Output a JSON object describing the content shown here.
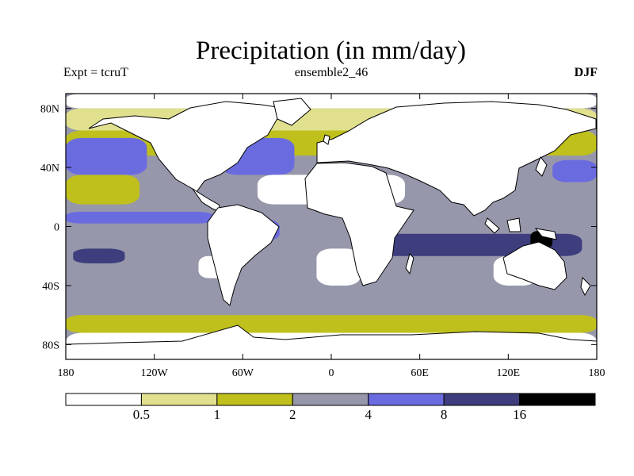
{
  "title": "Precipitation (in mm/day)",
  "subtitle_left": "Expt = tcruT",
  "subtitle_center": "ensemble2_46",
  "subtitle_right": "DJF",
  "map": {
    "projection": "cylindrical-equidistant",
    "lon_range": [
      -180,
      180
    ],
    "lat_range": [
      -90,
      90
    ],
    "lat_ticks": [
      {
        "value": 80,
        "label": "80N"
      },
      {
        "value": 40,
        "label": "40N"
      },
      {
        "value": 0,
        "label": "0"
      },
      {
        "value": -40,
        "label": "40S"
      },
      {
        "value": -80,
        "label": "80S"
      }
    ],
    "lon_ticks": [
      {
        "value": -180,
        "label": "180"
      },
      {
        "value": -120,
        "label": "120W"
      },
      {
        "value": -60,
        "label": "60W"
      },
      {
        "value": 0,
        "label": "0"
      },
      {
        "value": 60,
        "label": "60E"
      },
      {
        "value": 120,
        "label": "120E"
      },
      {
        "value": 180,
        "label": "180"
      }
    ],
    "land_color": "#ffffff",
    "coast_color": "#000000"
  },
  "colorbar": {
    "bins": [
      {
        "color": "#ffffff",
        "range": "< 0.5"
      },
      {
        "color": "#e0e08e",
        "range": "0.5-1"
      },
      {
        "color": "#bfc01c",
        "range": "1-2"
      },
      {
        "color": "#9797ab",
        "range": "2-4"
      },
      {
        "color": "#6b6be0",
        "range": "4-8"
      },
      {
        "color": "#3e3e7e",
        "range": "8-16"
      },
      {
        "color": "#000000",
        "range": "> 16"
      }
    ],
    "labels": [
      "0.5",
      "1",
      "2",
      "4",
      "8",
      "16"
    ]
  },
  "chart_data": {
    "type": "heatmap",
    "title": "Precipitation (in mm/day)",
    "units": "mm/day",
    "season": "DJF",
    "levels": [
      0.5,
      1,
      2,
      4,
      8,
      16
    ],
    "zones": [
      {
        "lat_band": [
          80,
          90
        ],
        "lon_band": [
          -180,
          180
        ],
        "value": 0.3
      },
      {
        "lat_band": [
          65,
          80
        ],
        "lon_band": [
          -180,
          180
        ],
        "value": 0.8
      },
      {
        "lat_band": [
          48,
          65
        ],
        "lon_band": [
          -180,
          180
        ],
        "value": 1.5
      },
      {
        "lat_band": [
          35,
          60
        ],
        "lon_band": [
          -180,
          -125
        ],
        "value": 5.5
      },
      {
        "lat_band": [
          35,
          60
        ],
        "lon_band": [
          -75,
          -25
        ],
        "value": 5.5
      },
      {
        "lat_band": [
          30,
          45
        ],
        "lon_band": [
          150,
          180
        ],
        "value": 5.5
      },
      {
        "lat_band": [
          15,
          35
        ],
        "lon_band": [
          -50,
          50
        ],
        "value": 0.2
      },
      {
        "lat_band": [
          15,
          35
        ],
        "lon_band": [
          -180,
          -130
        ],
        "value": 1.5
      },
      {
        "lat_band": [
          2,
          10
        ],
        "lon_band": [
          -180,
          -80
        ],
        "value": 6.0
      },
      {
        "lat_band": [
          -10,
          5
        ],
        "lon_band": [
          -75,
          -35
        ],
        "value": 7.0
      },
      {
        "lat_band": [
          -20,
          -5
        ],
        "lon_band": [
          30,
          170
        ],
        "value": 10.0
      },
      {
        "lat_band": [
          -15,
          -3
        ],
        "lon_band": [
          135,
          150
        ],
        "value": 18.0
      },
      {
        "lat_band": [
          -25,
          -15
        ],
        "lon_band": [
          -175,
          -140
        ],
        "value": 10.0
      },
      {
        "lat_band": [
          -40,
          -15
        ],
        "lon_band": [
          -10,
          20
        ],
        "value": 0.3
      },
      {
        "lat_band": [
          -40,
          -20
        ],
        "lon_band": [
          110,
          140
        ],
        "value": 0.3
      },
      {
        "lat_band": [
          -35,
          -20
        ],
        "lon_band": [
          -90,
          -70
        ],
        "value": 0.3
      },
      {
        "lat_band": [
          -60,
          -40
        ],
        "lon_band": [
          -180,
          180
        ],
        "value": 3.0
      },
      {
        "lat_band": [
          -72,
          -60
        ],
        "lon_band": [
          -180,
          180
        ],
        "value": 1.5
      },
      {
        "lat_band": [
          -90,
          -72
        ],
        "lon_band": [
          -180,
          180
        ],
        "value": 0.4
      }
    ]
  }
}
